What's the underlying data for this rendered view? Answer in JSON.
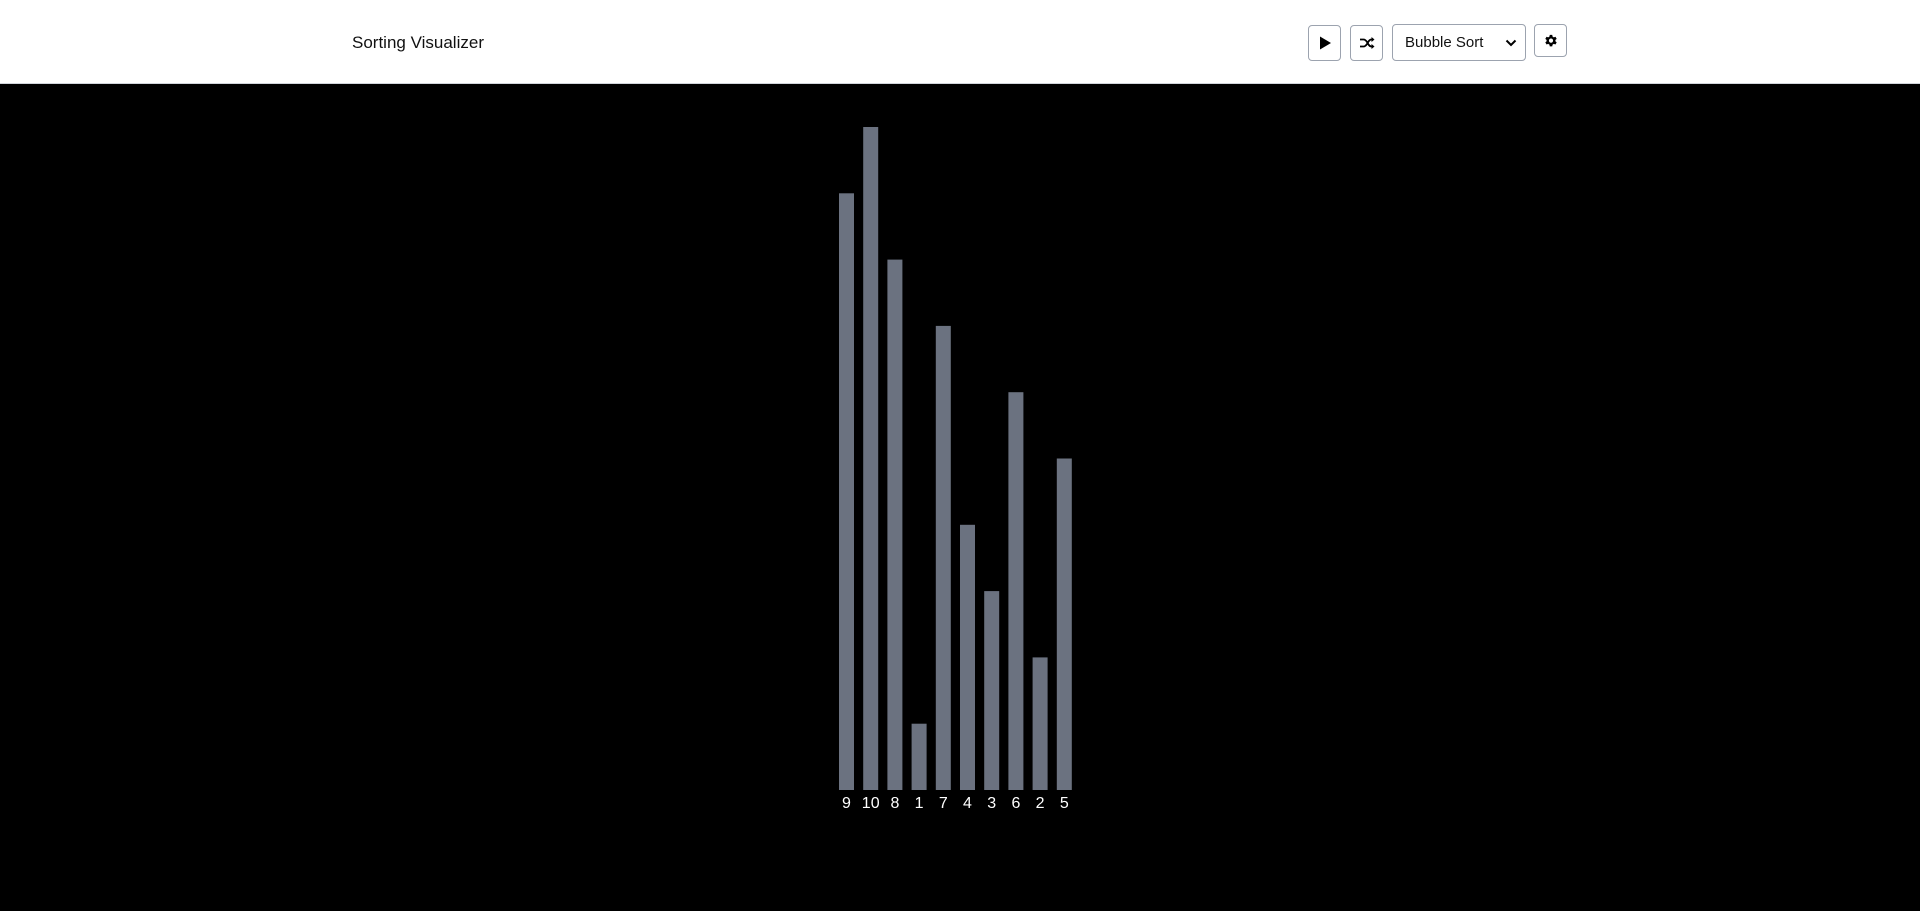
{
  "header": {
    "title": "Sorting Visualizer",
    "play_icon": "play-icon",
    "shuffle_icon": "shuffle-icon",
    "algorithm_select": {
      "selected": "Bubble Sort"
    },
    "settings_icon": "gear-icon"
  },
  "colors": {
    "bar": "#6b7280",
    "background": "#000000",
    "label": "#ffffff"
  },
  "chart_data": {
    "type": "bar",
    "categories": [
      "9",
      "10",
      "8",
      "1",
      "7",
      "4",
      "3",
      "6",
      "2",
      "5"
    ],
    "values": [
      9,
      10,
      8,
      1,
      7,
      4,
      3,
      6,
      2,
      5
    ],
    "ylim": [
      0,
      10
    ]
  }
}
